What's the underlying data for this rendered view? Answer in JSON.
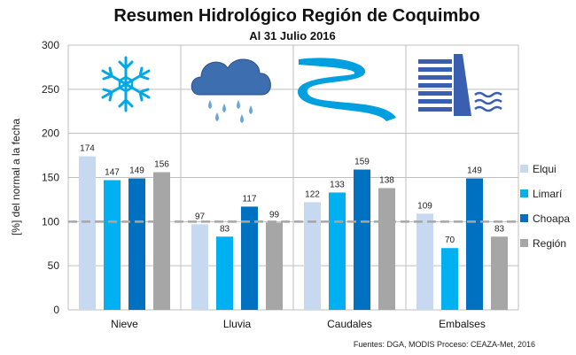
{
  "chart_data": {
    "type": "bar",
    "title": "Resumen Hidrológico Región de Coquimbo",
    "subtitle": "Al 31 Julio 2016",
    "ylabel": "[%] del normal a la fecha",
    "xlabel": "",
    "ylim": [
      0,
      300
    ],
    "yticks": [
      0,
      50,
      100,
      150,
      200,
      250,
      300
    ],
    "reference_line": 100,
    "grid": true,
    "legend_position": "right",
    "categories": [
      "Nieve",
      "Lluvia",
      "Caudales",
      "Embalses"
    ],
    "series": [
      {
        "name": "Elqui",
        "color": "#c6d9f1",
        "values": [
          174,
          97,
          122,
          109
        ]
      },
      {
        "name": "Limarí",
        "color": "#00b0f0",
        "values": [
          147,
          83,
          133,
          70
        ]
      },
      {
        "name": "Choapa",
        "color": "#0070c0",
        "values": [
          149,
          117,
          159,
          149
        ]
      },
      {
        "name": "Región",
        "color": "#a6a6a6",
        "values": [
          156,
          99,
          138,
          83
        ]
      }
    ],
    "category_icons": [
      "snowflake-icon",
      "rain-cloud-icon",
      "river-icon",
      "dam-icon"
    ],
    "source": "Fuentes: DGA, MODIS Proceso: CEAZA-Met, 2016"
  }
}
